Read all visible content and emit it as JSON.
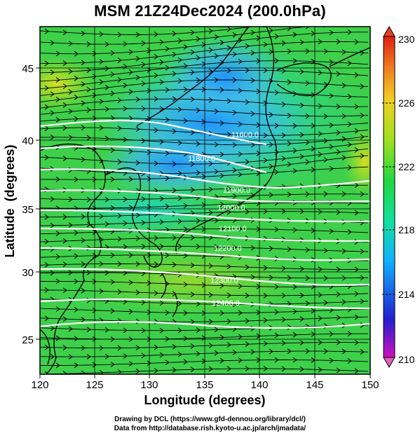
{
  "title": "MSM 21Z24Dec2024 (200.0hPa)",
  "axes": {
    "xlabel": "Longitude (degrees)",
    "ylabel": "Latitude  (degrees)",
    "xticks": [
      "120",
      "125",
      "130",
      "135",
      "140",
      "145",
      "150"
    ],
    "yticks": [
      "25",
      "30",
      "35",
      "40",
      "45"
    ],
    "xlim": [
      120,
      150
    ],
    "ylim": [
      22.4,
      47.6
    ]
  },
  "colorbar": {
    "labels": [
      "230",
      "226",
      "222",
      "218",
      "214",
      "210"
    ],
    "range": [
      210,
      230
    ],
    "colors": [
      "#d010c0",
      "#2020d0",
      "#10b0ff",
      "#10e0a0",
      "#20d840",
      "#a0e020",
      "#f0d020",
      "#f08020",
      "#e02010"
    ]
  },
  "contours": {
    "labels": [
      "11600.0",
      "11800.0",
      "11900.0",
      "12000.0",
      "12100.0",
      "12200.0",
      "12300.0",
      "12400.0"
    ],
    "color": "#ffffff"
  },
  "credits": {
    "line1": "Drawing by DCL (https://www.gfd-dennou.org/library/dcl/)",
    "line2": "Data from http://database.rish.kyoto-u.ac.jp/arch/jmadata/"
  }
}
